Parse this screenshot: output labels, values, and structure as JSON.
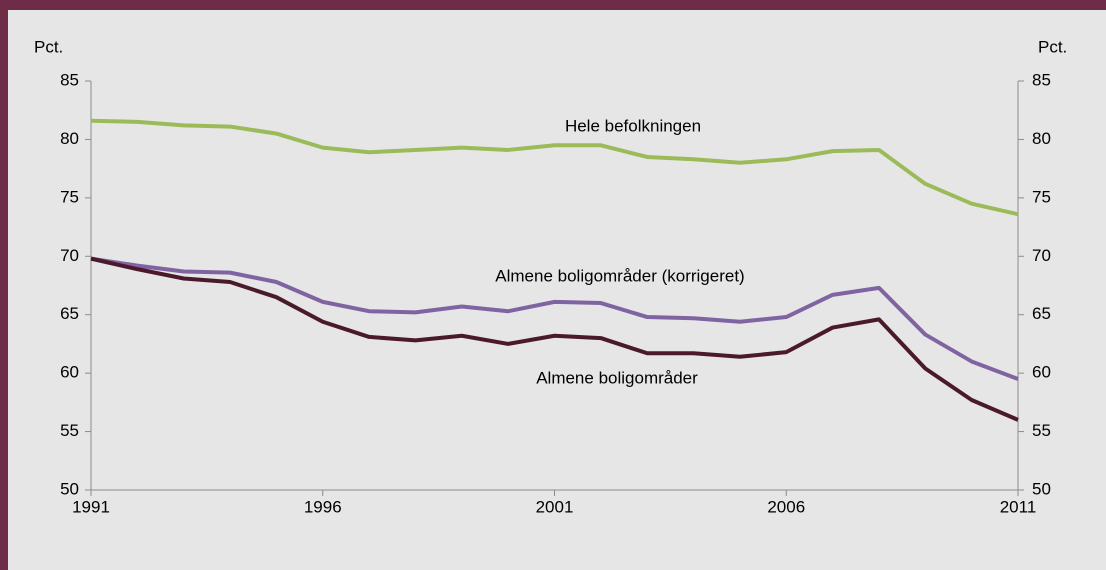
{
  "chart_data": {
    "type": "line",
    "y_label": "Pct.",
    "y2_label": "Pct.",
    "x": [
      1991,
      1992,
      1993,
      1994,
      1995,
      1996,
      1997,
      1998,
      1999,
      2000,
      2001,
      2002,
      2003,
      2004,
      2005,
      2006,
      2007,
      2008,
      2009,
      2010,
      2011
    ],
    "xlim": [
      1991,
      2011
    ],
    "xticks": [
      1991,
      1996,
      2001,
      2006,
      2011
    ],
    "ylim": [
      50,
      85
    ],
    "yticks": [
      50,
      55,
      60,
      65,
      70,
      75,
      80,
      85
    ],
    "y2lim": [
      50,
      85
    ],
    "y2ticks": [
      50,
      55,
      60,
      65,
      70,
      75,
      80,
      85
    ],
    "grid": false,
    "series": [
      {
        "name": "Hele befolkningen",
        "color": "#9bbb59",
        "values": [
          81.6,
          81.5,
          81.2,
          81.1,
          80.5,
          79.3,
          78.9,
          79.1,
          79.3,
          79.1,
          79.5,
          79.5,
          78.5,
          78.3,
          78.0,
          78.3,
          79.0,
          79.1,
          76.2,
          74.5,
          73.6
        ]
      },
      {
        "name": "Almene boligområder (korrigeret)",
        "color": "#8064a2",
        "values": [
          69.8,
          69.2,
          68.7,
          68.6,
          67.8,
          66.1,
          65.3,
          65.2,
          65.7,
          65.3,
          66.1,
          66.0,
          64.8,
          64.7,
          64.4,
          64.8,
          66.7,
          67.3,
          63.3,
          61.0,
          59.5
        ]
      },
      {
        "name": "Almene boligområder",
        "color": "#4a1a2c",
        "values": [
          69.8,
          68.9,
          68.1,
          67.8,
          66.5,
          64.4,
          63.1,
          62.8,
          63.2,
          62.5,
          63.2,
          63.0,
          61.7,
          61.7,
          61.4,
          61.8,
          63.9,
          64.6,
          60.4,
          57.7,
          56.0
        ]
      }
    ]
  }
}
